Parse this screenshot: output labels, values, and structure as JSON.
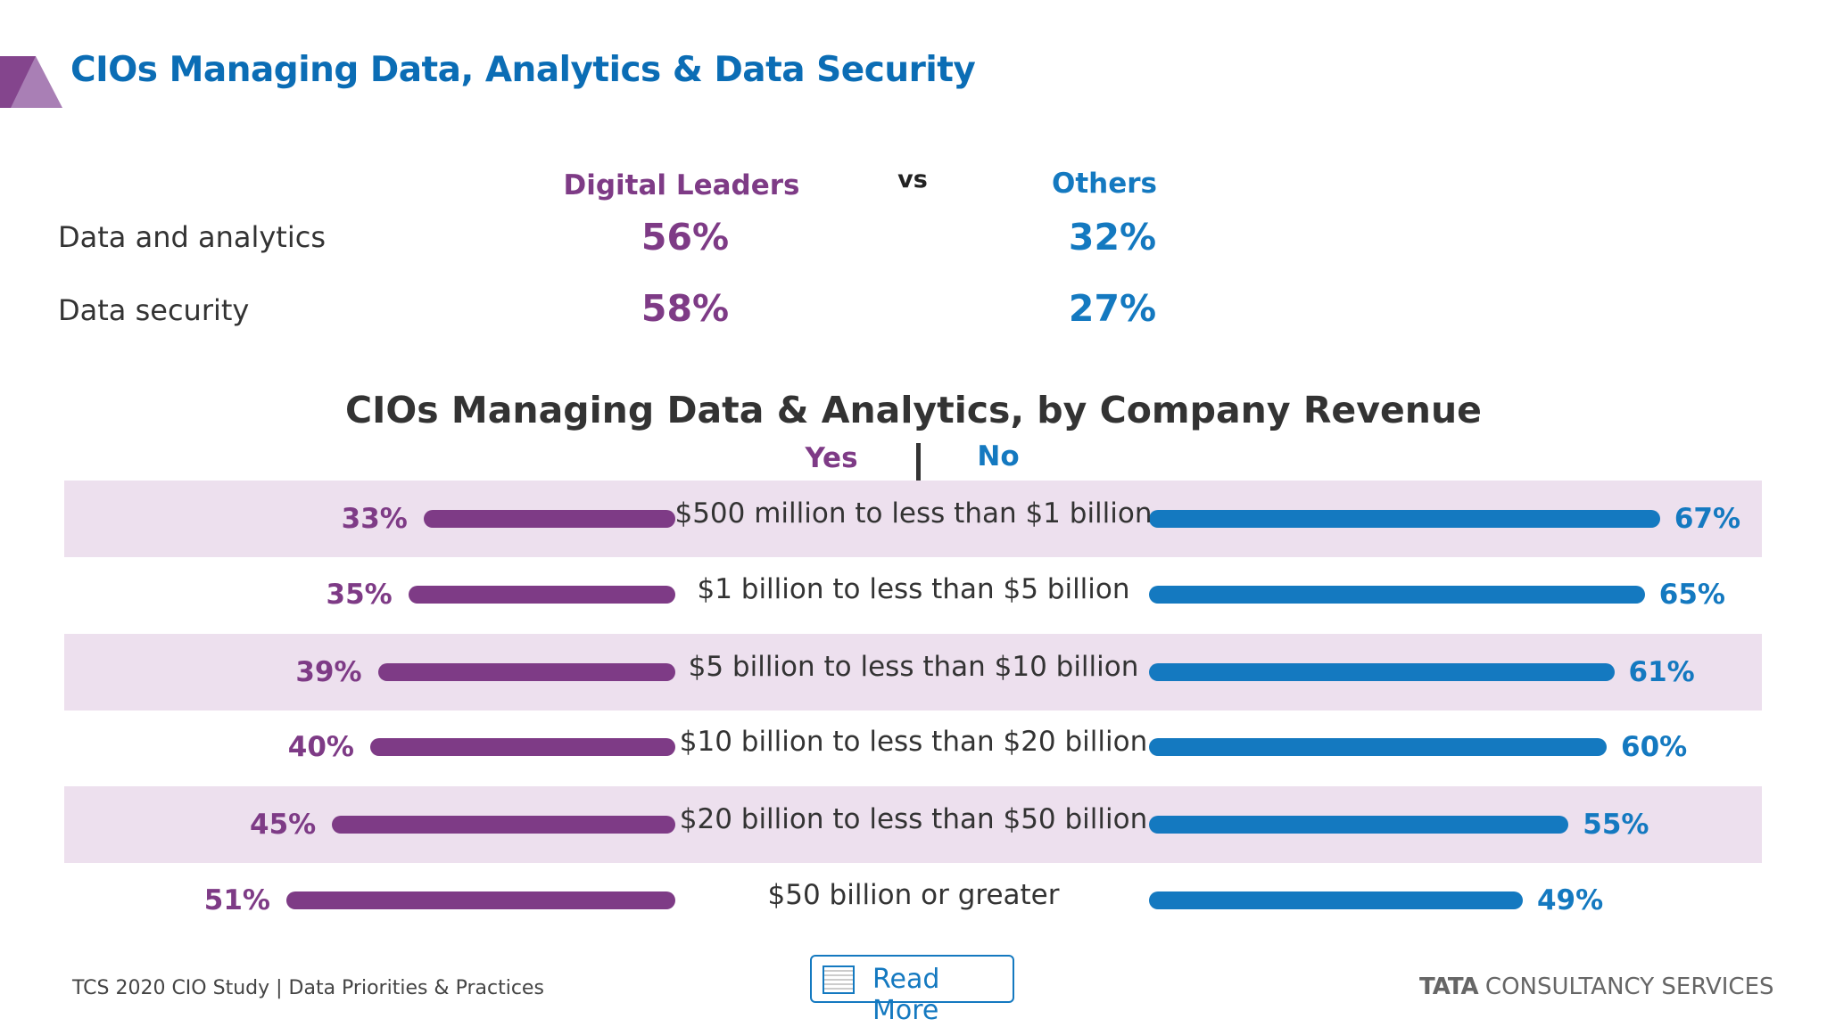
{
  "title": "CIOs Managing Data, Analytics & Data Security",
  "comparison": {
    "group_a": "Digital Leaders",
    "vs": "vs",
    "group_b": "Others",
    "rows": [
      {
        "label": "Data and analytics",
        "a": "56%",
        "b": "32%"
      },
      {
        "label": "Data security",
        "a": "58%",
        "b": "27%"
      }
    ]
  },
  "chart_data": {
    "type": "bar",
    "title": "CIOs Managing Data & Analytics, by Company Revenue",
    "legend": [
      "Yes",
      "No"
    ],
    "categories": [
      "$500 million to less than $1 billion",
      "$1 billion to less than $5 billion",
      "$5 billion to less than $10 billion",
      "$10 billion to less than $20 billion",
      "$20 billion to less than $50 billion",
      "$50 billion or greater"
    ],
    "series": [
      {
        "name": "Yes",
        "values": [
          33,
          35,
          39,
          40,
          45,
          51
        ],
        "color": "#7e3b86"
      },
      {
        "name": "No",
        "values": [
          67,
          65,
          61,
          60,
          55,
          49
        ],
        "color": "#1479c0"
      }
    ],
    "unit": "%"
  },
  "colors": {
    "purple": "#7e3b86",
    "blue": "#1479c0",
    "band": "#ede0ee",
    "title": "#0b6db5"
  },
  "footer": {
    "text": "TCS 2020 CIO Study | Data Priorities & Practices",
    "read_more": "Read More",
    "read_more_icon": "document-icon",
    "brand_bold": "TATA",
    "brand_rest": " CONSULTANCY SERVICES"
  }
}
